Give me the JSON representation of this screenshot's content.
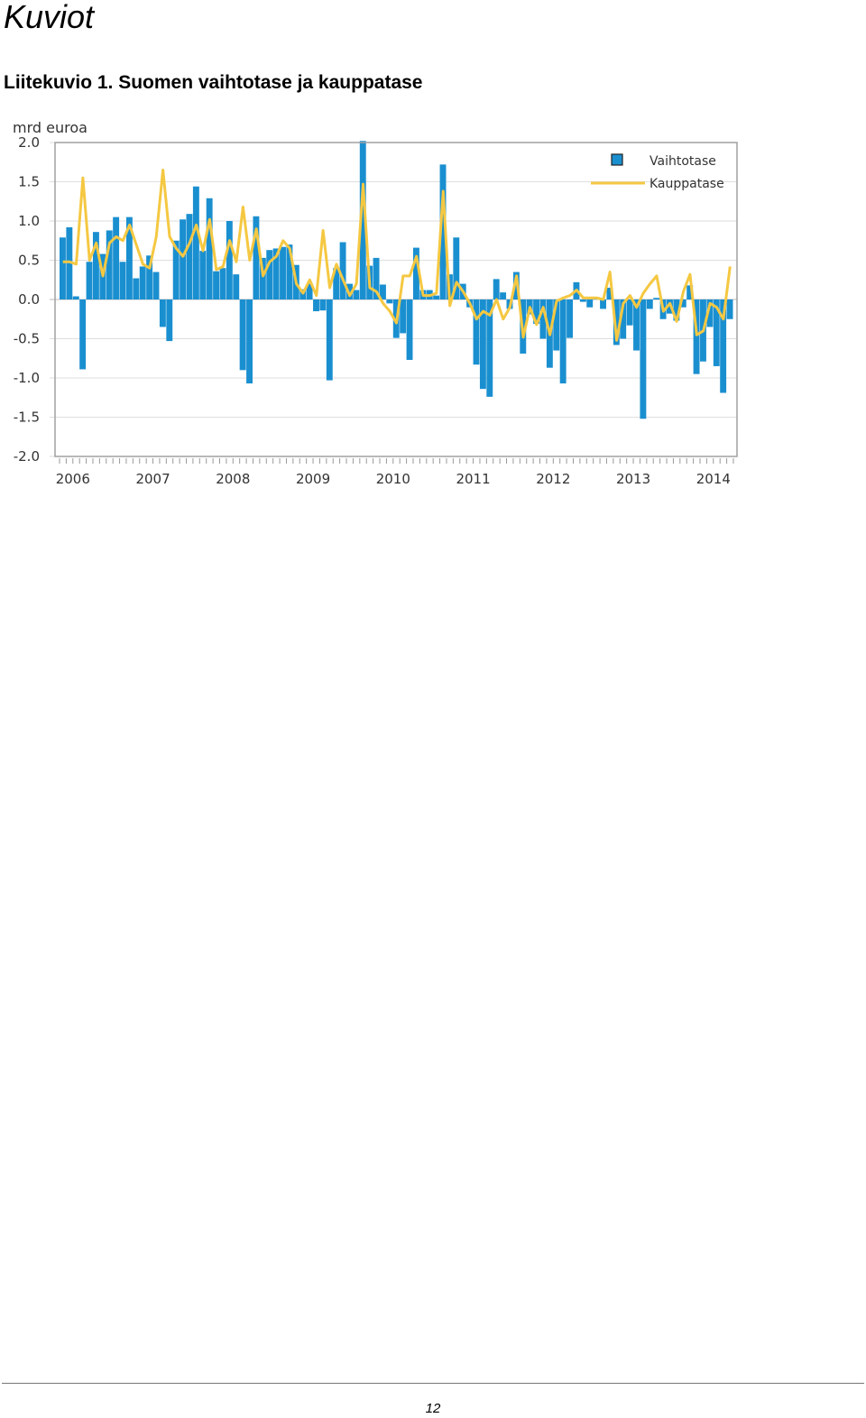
{
  "page": {
    "heading": "Kuviot",
    "caption": "Liitekuvio 1. Suomen vaihtotase ja kauppatase",
    "page_number": "12"
  },
  "chart_data": {
    "type": "bar",
    "unit_label": "mrd euroa",
    "ylim": [
      -2.0,
      2.0
    ],
    "y_ticks": [
      "2.0",
      "1.5",
      "1.0",
      "0.5",
      "0.0",
      "-0.5",
      "-1.0",
      "-1.5",
      "-2.0"
    ],
    "x_tick_labels": [
      "2006",
      "2007",
      "2008",
      "2009",
      "2010",
      "2011",
      "2012",
      "2013",
      "2014"
    ],
    "grid": true,
    "legend_position": "top-right",
    "frequency": "monthly",
    "start": "2006-01",
    "series": [
      {
        "name": "Vaihtotase",
        "type": "bar",
        "color": "#1a8fd0",
        "values": [
          0.79,
          0.92,
          0.04,
          -0.89,
          0.48,
          0.86,
          0.58,
          0.88,
          1.05,
          0.48,
          1.05,
          0.27,
          0.42,
          0.56,
          0.35,
          -0.35,
          -0.53,
          0.75,
          1.02,
          1.09,
          1.44,
          0.62,
          1.29,
          0.36,
          0.4,
          1.0,
          0.32,
          -0.9,
          -1.07,
          1.06,
          0.53,
          0.63,
          0.65,
          0.67,
          0.7,
          0.44,
          0.13,
          0.2,
          -0.15,
          -0.14,
          -1.03,
          0.4,
          0.73,
          0.2,
          0.12,
          2.02,
          0.43,
          0.53,
          0.19,
          -0.05,
          -0.49,
          -0.43,
          -0.77,
          0.66,
          0.12,
          0.12,
          0.05,
          1.72,
          0.32,
          0.79,
          0.2,
          -0.1,
          -0.83,
          -1.14,
          -1.24,
          0.26,
          0.09,
          -0.12,
          0.35,
          -0.69,
          -0.19,
          -0.31,
          -0.5,
          -0.87,
          -0.65,
          -1.07,
          -0.49,
          0.22,
          -0.03,
          -0.1,
          0.03,
          -0.12,
          0.15,
          -0.58,
          -0.5,
          -0.33,
          -0.65,
          -1.52,
          -0.12,
          0.02,
          -0.25,
          -0.18,
          -0.27,
          -0.1,
          0.18,
          -0.95,
          -0.79,
          -0.35,
          -0.85,
          -1.19,
          -0.25
        ]
      },
      {
        "name": "Kauppatase",
        "type": "line",
        "color": "#f5c842",
        "values": [
          0.48,
          0.48,
          0.45,
          1.55,
          0.5,
          0.72,
          0.3,
          0.72,
          0.8,
          0.75,
          0.95,
          0.7,
          0.45,
          0.4,
          0.8,
          1.65,
          0.8,
          0.65,
          0.55,
          0.72,
          0.95,
          0.62,
          1.02,
          0.38,
          0.42,
          0.75,
          0.48,
          1.18,
          0.5,
          0.9,
          0.3,
          0.48,
          0.55,
          0.75,
          0.65,
          0.2,
          0.08,
          0.25,
          0.05,
          0.88,
          0.15,
          0.45,
          0.25,
          0.05,
          0.2,
          1.47,
          0.15,
          0.1,
          -0.05,
          -0.15,
          -0.3,
          0.3,
          0.3,
          0.55,
          0.05,
          0.05,
          0.08,
          1.38,
          -0.08,
          0.22,
          0.1,
          -0.05,
          -0.25,
          -0.15,
          -0.2,
          0.0,
          -0.25,
          -0.1,
          0.3,
          -0.48,
          -0.1,
          -0.32,
          -0.1,
          -0.45,
          -0.02,
          0.02,
          0.05,
          0.12,
          0.02,
          0.02,
          0.02,
          0.0,
          0.35,
          -0.52,
          -0.05,
          0.05,
          -0.1,
          0.08,
          0.2,
          0.3,
          -0.15,
          -0.05,
          -0.28,
          0.1,
          0.32,
          -0.45,
          -0.4,
          -0.05,
          -0.1,
          -0.25,
          0.42
        ]
      }
    ]
  }
}
